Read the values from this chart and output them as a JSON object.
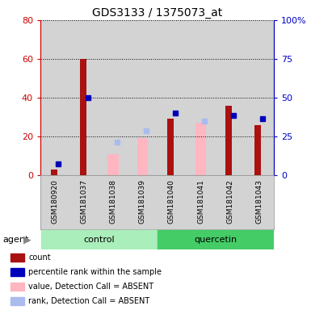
{
  "title": "GDS3133 / 1375073_at",
  "samples": [
    "GSM180920",
    "GSM181037",
    "GSM181038",
    "GSM181039",
    "GSM181040",
    "GSM181041",
    "GSM181042",
    "GSM181043"
  ],
  "count_values": [
    3,
    60,
    null,
    null,
    29,
    null,
    36,
    26
  ],
  "rank_values": [
    6,
    40,
    null,
    null,
    32,
    null,
    31,
    29
  ],
  "absent_value_bars": [
    null,
    null,
    11,
    19,
    null,
    27,
    null,
    null
  ],
  "absent_rank_markers": [
    null,
    null,
    17,
    23,
    null,
    28,
    null,
    null
  ],
  "ylim_left": [
    0,
    80
  ],
  "ylim_right": [
    0,
    100
  ],
  "yticks_left": [
    0,
    20,
    40,
    60,
    80
  ],
  "ytick_labels_left": [
    "0",
    "20",
    "40",
    "60",
    "80"
  ],
  "yticks_right": [
    0,
    25,
    50,
    75,
    100
  ],
  "ytick_labels_right": [
    "0",
    "25",
    "50",
    "75",
    "100%"
  ],
  "count_color": "#AA1111",
  "rank_color": "#0000BB",
  "absent_value_color": "#FFB6C1",
  "absent_rank_color": "#AABBEE",
  "bg_color": "#D3D3D3",
  "plot_bg": "#FFFFFF",
  "left_axis_color": "#CC0000",
  "right_axis_color": "#0000CC",
  "ctrl_color": "#AAEEBB",
  "quer_color": "#44CC66",
  "legend_items": [
    {
      "color": "#AA1111",
      "label": "count"
    },
    {
      "color": "#0000BB",
      "label": "percentile rank within the sample"
    },
    {
      "color": "#FFB6C1",
      "label": "value, Detection Call = ABSENT"
    },
    {
      "color": "#AABBEE",
      "label": "rank, Detection Call = ABSENT"
    }
  ]
}
